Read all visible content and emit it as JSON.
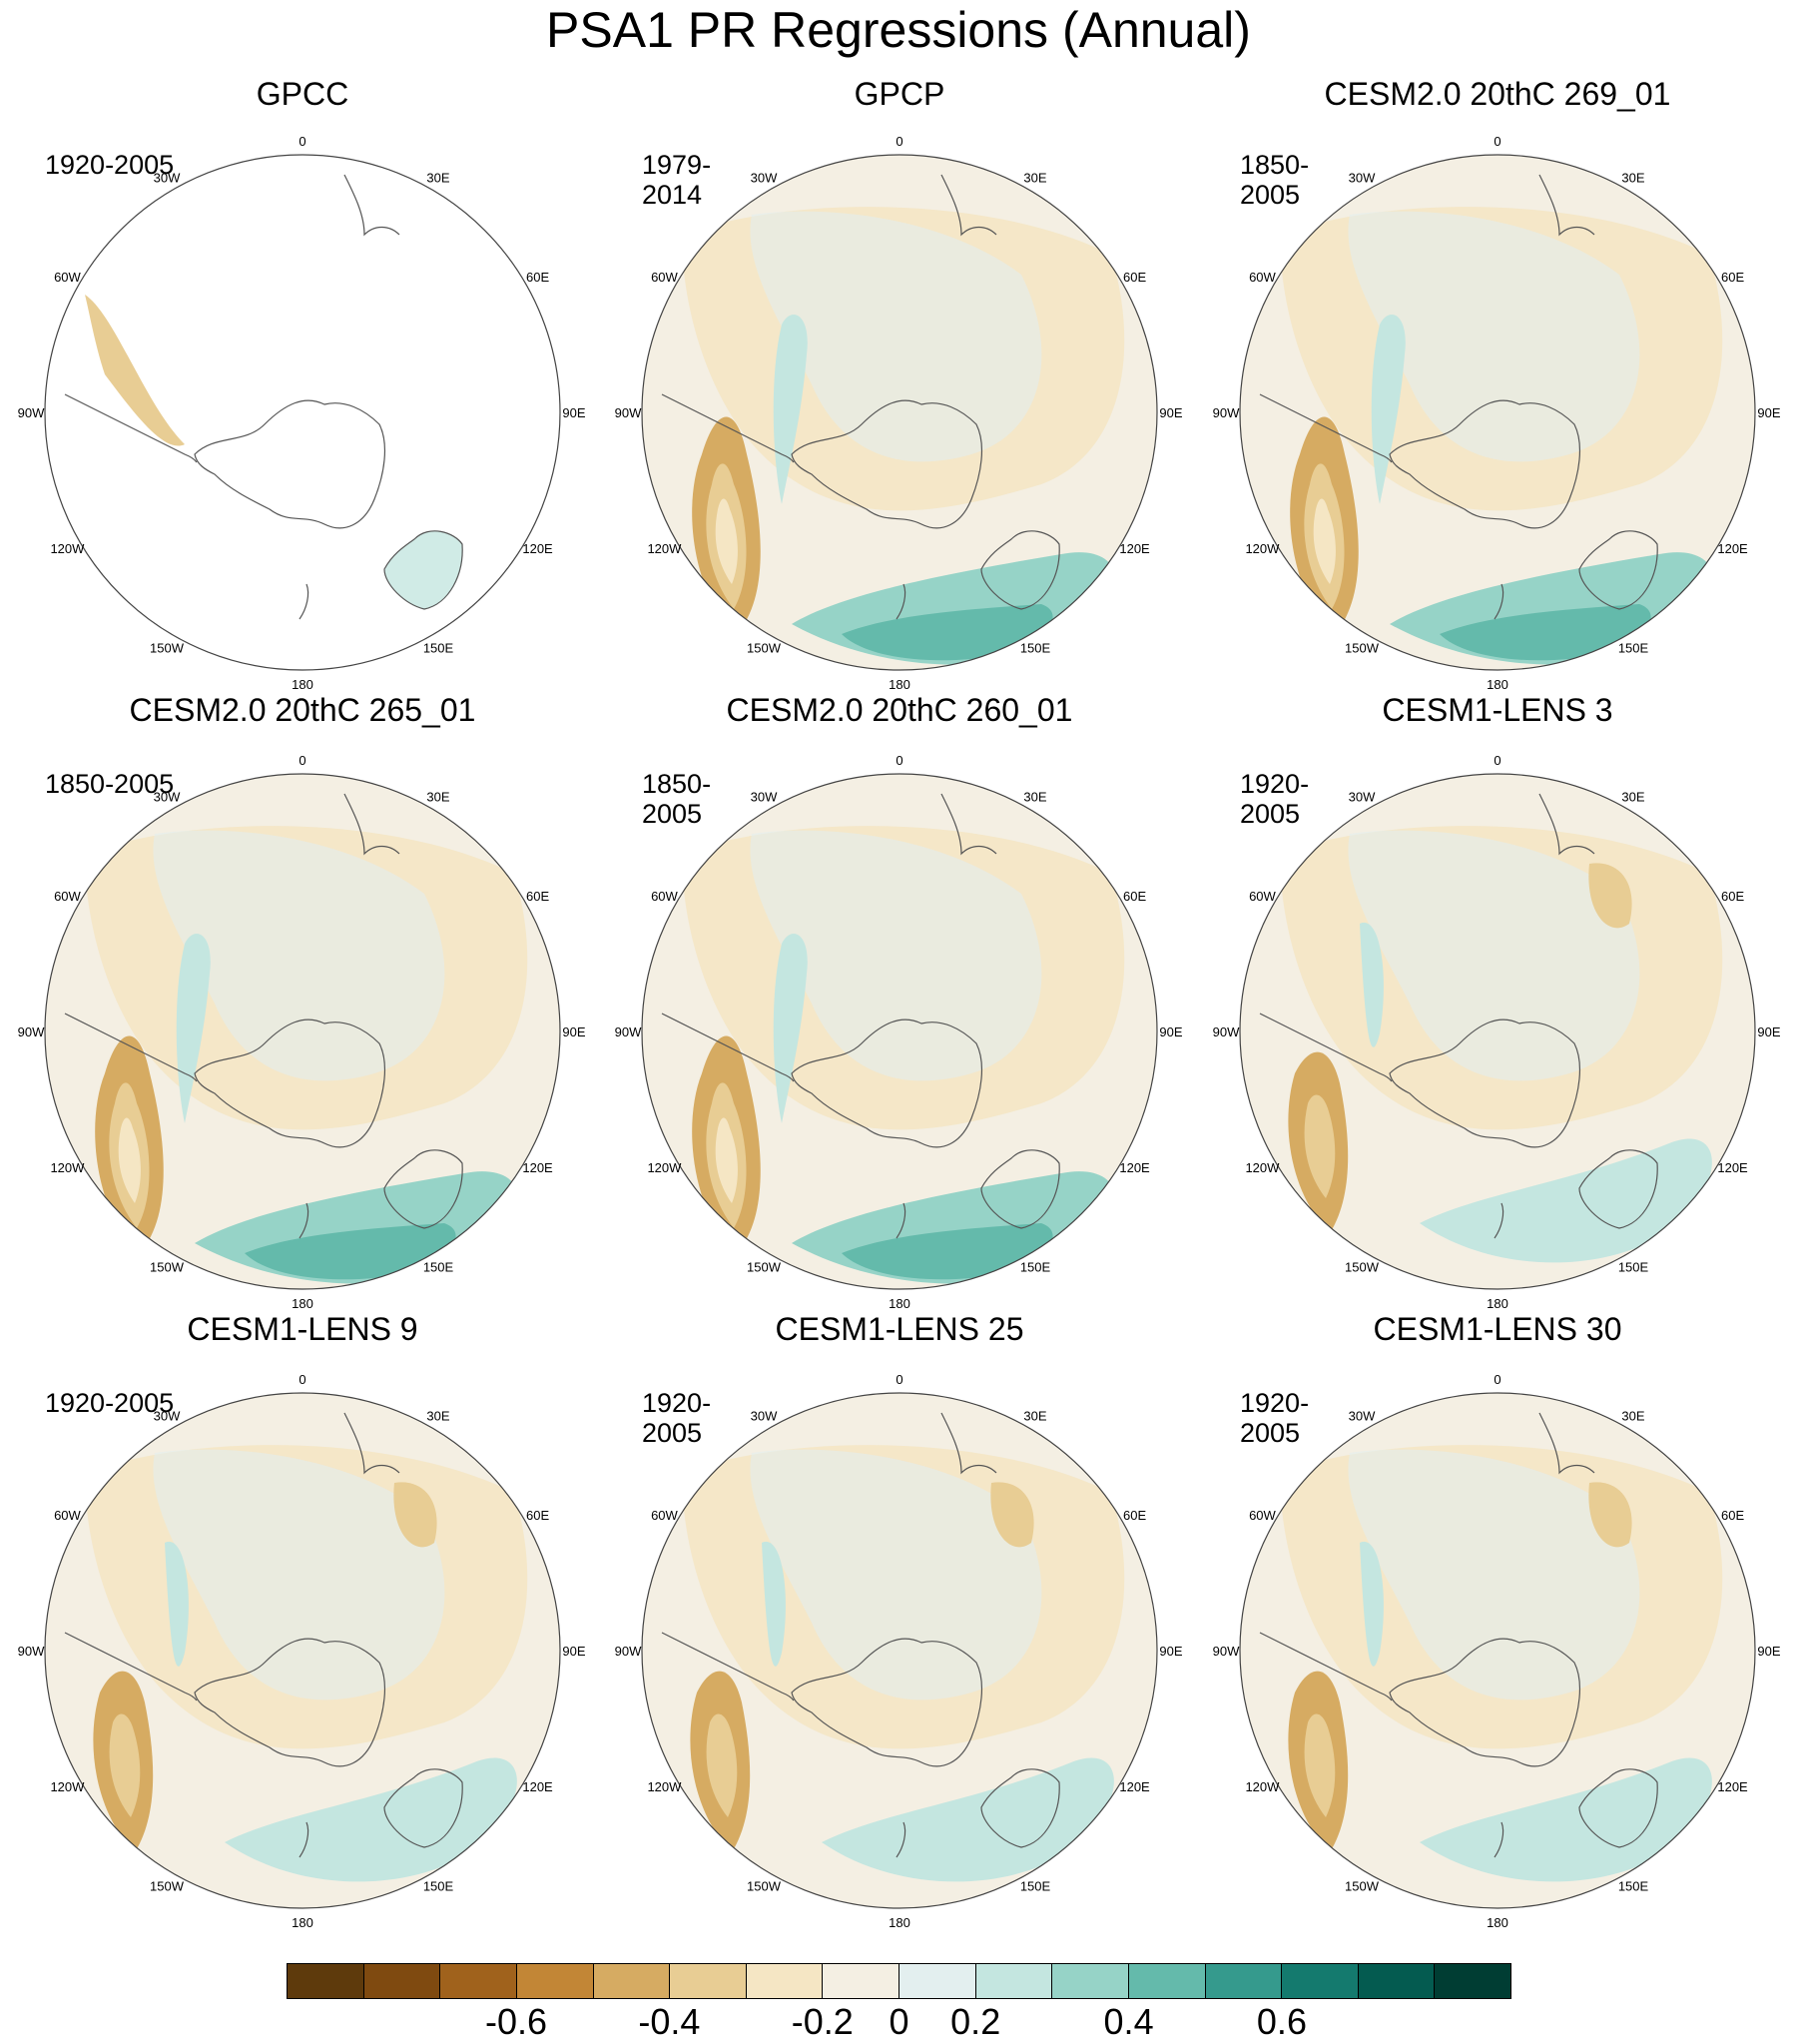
{
  "title": "PSA1 PR Regressions (Annual)",
  "longitude_labels": [
    "0",
    "30E",
    "60E",
    "90E",
    "120E",
    "150E",
    "180",
    "150W",
    "120W",
    "90W",
    "60W",
    "30W"
  ],
  "panels": [
    {
      "name": "GPCC",
      "period": "1920-2005",
      "pattern": "obs-land"
    },
    {
      "name": "GPCP",
      "period": "1979-2014",
      "pattern": "strong"
    },
    {
      "name": "CESM2.0 20thC 269_01",
      "period": "1850-2005",
      "pattern": "strong"
    },
    {
      "name": "CESM2.0 20thC 265_01",
      "period": "1850-2005",
      "pattern": "strong"
    },
    {
      "name": "CESM2.0 20thC 260_01",
      "period": "1850-2005",
      "pattern": "strong"
    },
    {
      "name": "CESM1-LENS 3",
      "period": "1920-2005",
      "pattern": "moderate"
    },
    {
      "name": "CESM1-LENS 9",
      "period": "1920-2005",
      "pattern": "moderate"
    },
    {
      "name": "CESM1-LENS 25",
      "period": "1920-2005",
      "pattern": "moderate"
    },
    {
      "name": "CESM1-LENS 30",
      "period": "1920-2005",
      "pattern": "moderate"
    }
  ],
  "colorbar": {
    "colors": [
      "#5e3a0c",
      "#7f4a10",
      "#a0621c",
      "#c28636",
      "#d6ab62",
      "#e8cd94",
      "#f5e6c4",
      "#f4efe3",
      "#e3efef",
      "#c4e6e0",
      "#96d3c7",
      "#64baab",
      "#359a8d",
      "#147a6e",
      "#045b50",
      "#003d33"
    ],
    "tick_labels": [
      "-0.6",
      "-0.4",
      "-0.2",
      "0",
      "0.2",
      "0.4",
      "0.6"
    ],
    "tick_values": [
      -0.6,
      -0.4,
      -0.2,
      0,
      0.2,
      0.4,
      0.6
    ]
  }
}
